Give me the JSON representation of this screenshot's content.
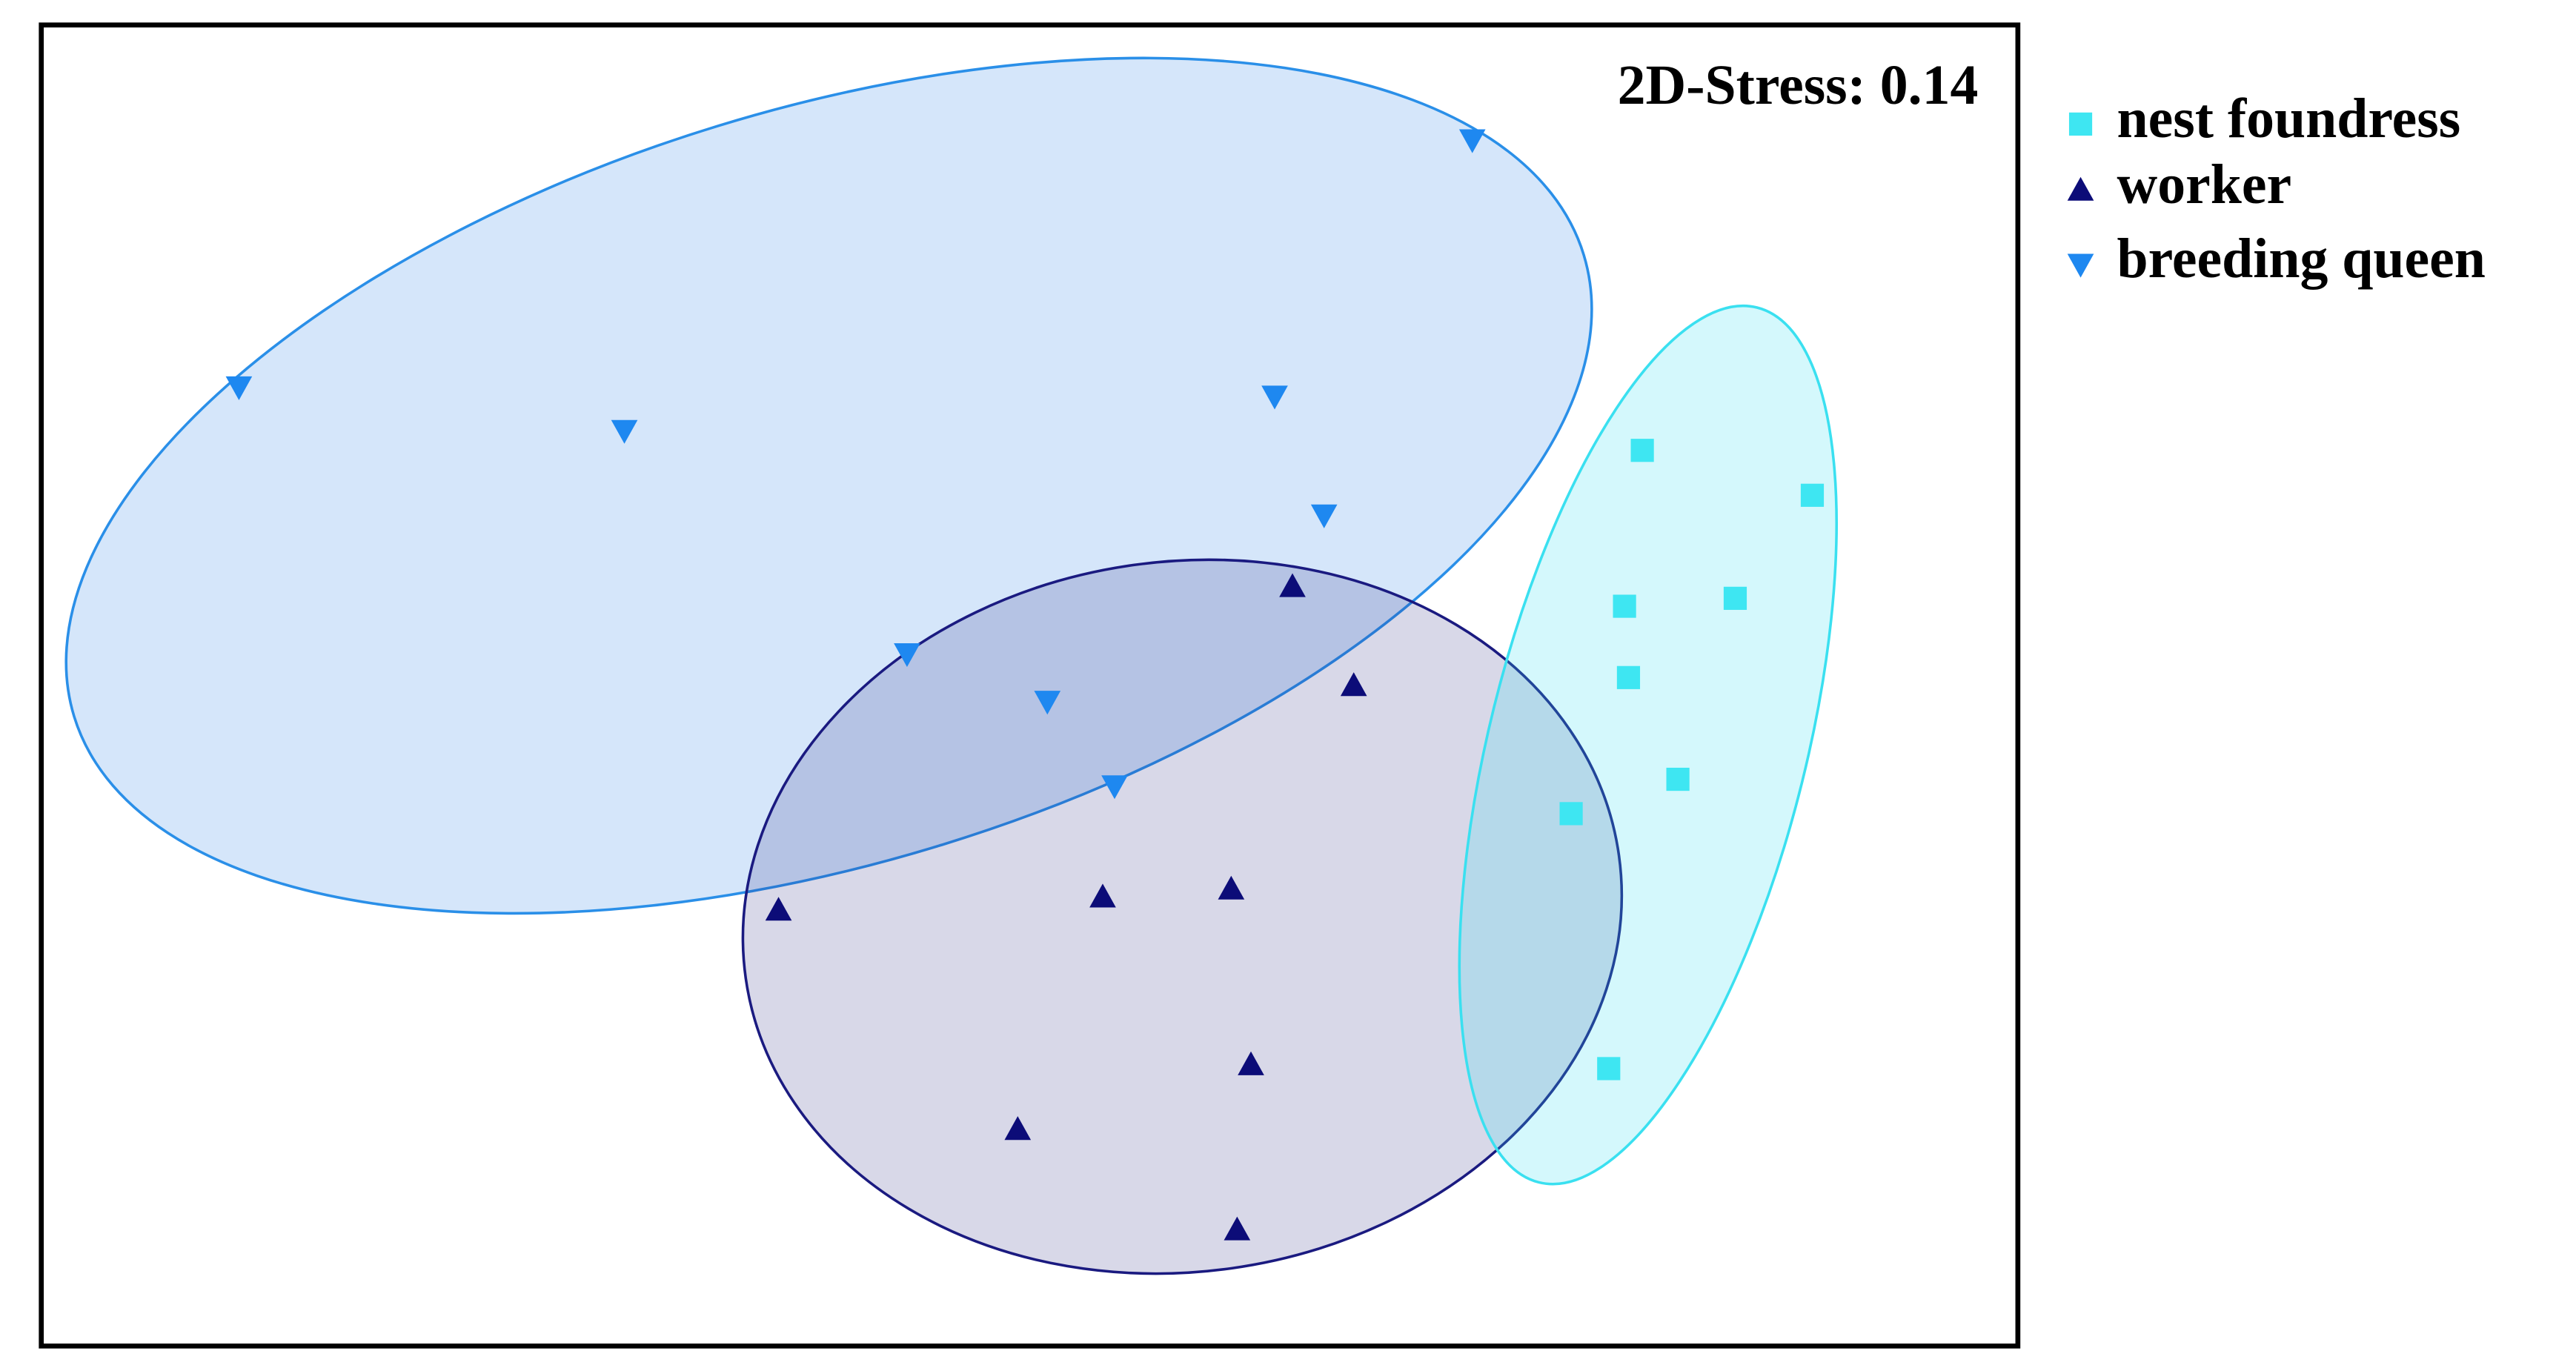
{
  "chart_data": {
    "type": "scatter",
    "annotation": "2D-Stress: 0.14",
    "xlim": [
      0,
      100
    ],
    "ylim": [
      0,
      100
    ],
    "grid": false,
    "legend": "right",
    "series": [
      {
        "name": "nest foundress",
        "color": "#3ee6f2",
        "marker": "square",
        "x": [
          81.0,
          89.6,
          80.1,
          85.7,
          80.3,
          82.8,
          77.4,
          79.3
        ],
        "values": [
          67.8,
          64.4,
          56.0,
          56.6,
          50.6,
          42.9,
          40.3,
          21.0
        ]
      },
      {
        "name": "worker",
        "color": "#0c0c78",
        "marker": "triangle-up",
        "x": [
          63.3,
          66.4,
          37.3,
          53.7,
          60.2,
          61.2,
          49.4,
          60.5
        ],
        "values": [
          57.5,
          50.0,
          33.0,
          34.0,
          34.6,
          21.3,
          16.4,
          8.8
        ]
      },
      {
        "name": "breeding queen",
        "color": "#1e88f0",
        "marker": "triangle-down",
        "x": [
          72.4,
          10.0,
          29.5,
          62.4,
          64.9,
          43.8,
          50.9,
          54.3
        ],
        "values": [
          91.3,
          72.6,
          69.3,
          71.9,
          62.9,
          52.4,
          48.8,
          42.4
        ]
      }
    ]
  }
}
